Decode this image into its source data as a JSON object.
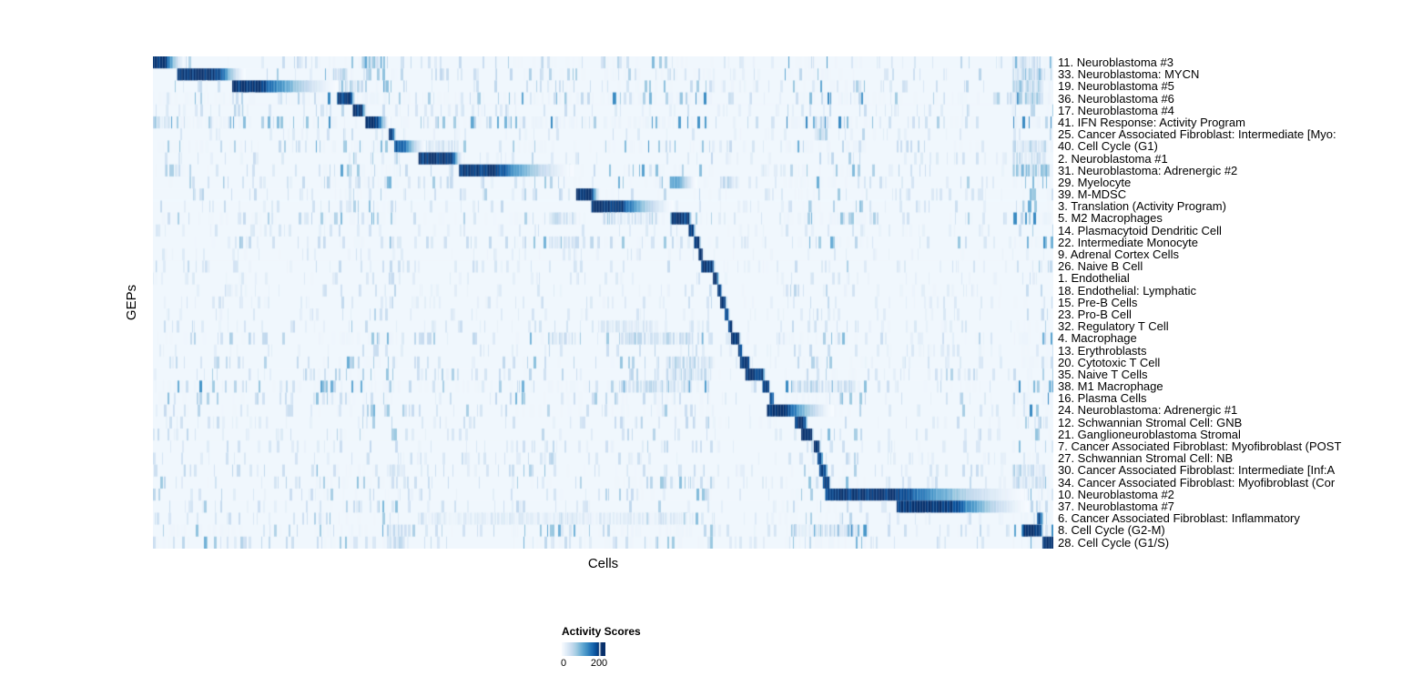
{
  "figure": {
    "y_axis_title": "GEPs",
    "x_axis_title": "Cells"
  },
  "legend": {
    "title": "Activity Scores",
    "min_label": "0",
    "max_label": "200"
  },
  "chart_data": {
    "type": "heatmap",
    "title": "",
    "xlabel": "Cells",
    "ylabel": "GEPs",
    "x_tick_labels": [],
    "grid": false,
    "legend_position": "bottom",
    "colorbar": {
      "title": "Activity Scores",
      "min": 0,
      "max": 200,
      "tick_labels": [
        "0",
        "200"
      ]
    },
    "color_low": "#f7fbff",
    "color_high": "#08306b",
    "description": "Each row is a gene expression program (GEP); cells are ordered along x. 'block' = [start_frac, dark_end_frac, fade_end_frac, peak(0-1 of max=200)] giving the diagonal activity block of that GEP. 'clusters' = [start_frac, end_frac, intensity] secondary activity streaks. 'noise' = background streak level.",
    "rows": [
      {
        "label": "11. Neuroblastoma #3",
        "block": [
          0.0,
          0.012,
          0.035,
          1.0
        ],
        "clusters": [
          [
            0.232,
            0.258,
            0.5
          ],
          [
            0.96,
            0.985,
            0.3
          ]
        ],
        "noise": 0.45
      },
      {
        "label": "33. Neuroblastoma: MYCN",
        "block": [
          0.027,
          0.072,
          0.102,
          1.0
        ],
        "clusters": [
          [
            0.2,
            0.215,
            0.3
          ],
          [
            0.955,
            0.99,
            0.35
          ]
        ],
        "noise": 0.5
      },
      {
        "label": "19. Neuroblastoma #5",
        "block": [
          0.088,
          0.118,
          0.205,
          1.0
        ],
        "clusters": [
          [
            0.207,
            0.232,
            0.35
          ],
          [
            0.955,
            0.99,
            0.35
          ]
        ],
        "noise": 0.45
      },
      {
        "label": "36. Neuroblastoma #6",
        "block": [
          0.205,
          0.219,
          0.225,
          1.0
        ],
        "clusters": [
          [
            0.955,
            0.99,
            0.4
          ]
        ],
        "noise": 0.7
      },
      {
        "label": "17. Neuroblastoma #4",
        "block": [
          0.222,
          0.231,
          0.238,
          1.0
        ],
        "clusters": [
          [
            0.09,
            0.1,
            0.3
          ]
        ],
        "noise": 0.3
      },
      {
        "label": "41. IFN Response: Activity Program",
        "block": [
          0.236,
          0.249,
          0.262,
          1.0
        ],
        "clusters": [
          [
            0.0,
            0.02,
            0.35
          ],
          [
            0.735,
            0.75,
            0.3
          ]
        ],
        "noise": 0.75
      },
      {
        "label": "25. Cancer Associated Fibroblast: Intermediate [Myo:",
        "block": [
          0.262,
          0.266,
          0.27,
          1.0
        ],
        "clusters": [
          [
            0.735,
            0.75,
            0.35
          ]
        ],
        "noise": 0.25
      },
      {
        "label": "40. Cell Cycle (G1)",
        "block": [
          0.268,
          0.278,
          0.302,
          0.85
        ],
        "clusters": [
          [
            0.3,
            0.34,
            0.25
          ],
          [
            0.955,
            0.99,
            0.3
          ]
        ],
        "noise": 0.55
      },
      {
        "label": "2. Neuroblastoma #1",
        "block": [
          0.295,
          0.332,
          0.344,
          1.0
        ],
        "clusters": [
          [
            0.955,
            0.99,
            0.3
          ]
        ],
        "noise": 0.3
      },
      {
        "label": "31. Neuroblastoma: Adrenergic #2",
        "block": [
          0.34,
          0.38,
          0.467,
          1.0
        ],
        "clusters": [
          [
            0.955,
            0.995,
            0.45
          ]
        ],
        "noise": 0.5
      },
      {
        "label": "29. Myelocyte",
        "block": [
          0.574,
          0.585,
          0.603,
          0.55
        ],
        "clusters": [
          [
            0.63,
            0.65,
            0.3
          ]
        ],
        "noise": 0.45
      },
      {
        "label": "39. M-MDSC",
        "block": [
          0.47,
          0.486,
          0.497,
          1.0
        ],
        "clusters": [],
        "noise": 0.4
      },
      {
        "label": "3. Translation (Activity Program)",
        "block": [
          0.487,
          0.518,
          0.578,
          1.0
        ],
        "clusters": [],
        "noise": 0.35
      },
      {
        "label": "5. M2 Macrophages",
        "block": [
          0.576,
          0.594,
          0.599,
          1.0
        ],
        "clusters": [
          [
            0.44,
            0.47,
            0.3
          ],
          [
            0.5,
            0.56,
            0.25
          ]
        ],
        "noise": 0.55
      },
      {
        "label": "14. Plasmacytoid Dendritic Cell",
        "block": [
          0.595,
          0.6,
          0.602,
          1.0
        ],
        "clusters": [],
        "noise": 0.25
      },
      {
        "label": "22. Intermediate Monocyte",
        "block": [
          0.601,
          0.606,
          0.608,
          1.0
        ],
        "clusters": [
          [
            0.44,
            0.47,
            0.25
          ]
        ],
        "noise": 0.45
      },
      {
        "label": "9. Adrenal Cortex Cells",
        "block": [
          0.606,
          0.609,
          0.611,
          0.95
        ],
        "clusters": [],
        "noise": 0.2
      },
      {
        "label": "26. Naive B Cell",
        "block": [
          0.609,
          0.621,
          0.624,
          1.0
        ],
        "clusters": [],
        "noise": 0.3
      },
      {
        "label": "1. Endothelial",
        "block": [
          0.622,
          0.626,
          0.628,
          1.0
        ],
        "clusters": [],
        "noise": 0.2
      },
      {
        "label": "18. Endothelial: Lymphatic",
        "block": [
          0.627,
          0.63,
          0.632,
          0.9
        ],
        "clusters": [],
        "noise": 0.22
      },
      {
        "label": "15. Pre-B Cells",
        "block": [
          0.63,
          0.635,
          0.637,
          1.0
        ],
        "clusters": [],
        "noise": 0.28
      },
      {
        "label": "23. Pro-B Cell",
        "block": [
          0.635,
          0.638,
          0.64,
          0.9
        ],
        "clusters": [],
        "noise": 0.25
      },
      {
        "label": "32. Regulatory T Cell",
        "block": [
          0.639,
          0.642,
          0.644,
          0.95
        ],
        "clusters": [
          [
            0.5,
            0.56,
            0.2
          ]
        ],
        "noise": 0.3
      },
      {
        "label": "4. Macrophage",
        "block": [
          0.642,
          0.65,
          0.652,
          1.0
        ],
        "clusters": [
          [
            0.52,
            0.6,
            0.3
          ],
          [
            0.44,
            0.47,
            0.25
          ]
        ],
        "noise": 0.5
      },
      {
        "label": "13. Erythroblasts",
        "block": [
          0.65,
          0.653,
          0.655,
          0.9
        ],
        "clusters": [],
        "noise": 0.28
      },
      {
        "label": "20. Cytotoxic T Cell",
        "block": [
          0.652,
          0.661,
          0.663,
          1.0
        ],
        "clusters": [
          [
            0.57,
            0.62,
            0.3
          ]
        ],
        "noise": 0.4
      },
      {
        "label": "35. Naive T Cells",
        "block": [
          0.658,
          0.677,
          0.68,
          1.0
        ],
        "clusters": [
          [
            0.57,
            0.62,
            0.3
          ]
        ],
        "noise": 0.4
      },
      {
        "label": "38. M1 Macrophage",
        "block": [
          0.677,
          0.683,
          0.685,
          1.0
        ],
        "clusters": [
          [
            0.52,
            0.6,
            0.3
          ],
          [
            0.71,
            0.78,
            0.3
          ]
        ],
        "noise": 0.65
      },
      {
        "label": "16. Plasma Cells",
        "block": [
          0.685,
          0.688,
          0.69,
          0.9
        ],
        "clusters": [],
        "noise": 0.45
      },
      {
        "label": "24. Neuroblastoma: Adrenergic #1",
        "block": [
          0.682,
          0.702,
          0.755,
          1.0
        ],
        "clusters": [],
        "noise": 0.45
      },
      {
        "label": "12. Schwannian Stromal Cell: GNB",
        "block": [
          0.713,
          0.724,
          0.727,
          1.0
        ],
        "clusters": [],
        "noise": 0.3
      },
      {
        "label": "21. Ganglioneuroblastoma Stromal",
        "block": [
          0.72,
          0.731,
          0.733,
          1.0
        ],
        "clusters": [],
        "noise": 0.35
      },
      {
        "label": "7. Cancer Associated Fibroblast: Myofibroblast (POST",
        "block": [
          0.734,
          0.739,
          0.741,
          0.95
        ],
        "clusters": [],
        "noise": 0.28
      },
      {
        "label": "27. Schwannian Stromal Cell: NB",
        "block": [
          0.738,
          0.742,
          0.744,
          0.95
        ],
        "clusters": [],
        "noise": 0.3
      },
      {
        "label": "30. Cancer Associated Fibroblast: Intermediate [Inf:A",
        "block": [
          0.74,
          0.747,
          0.749,
          0.9
        ],
        "clusters": [
          [
            0.26,
            0.28,
            0.25
          ],
          [
            0.955,
            0.99,
            0.3
          ]
        ],
        "noise": 0.4
      },
      {
        "label": "34. Cancer Associated Fibroblast: Myofibroblast (Cor",
        "block": [
          0.744,
          0.75,
          0.752,
          0.95
        ],
        "clusters": [
          [
            0.955,
            0.99,
            0.3
          ]
        ],
        "noise": 0.45
      },
      {
        "label": "10. Neuroblastoma #2",
        "block": [
          0.747,
          0.826,
          0.971,
          1.0
        ],
        "clusters": [],
        "noise": 0.4
      },
      {
        "label": "37. Neuroblastoma #7",
        "block": [
          0.826,
          0.885,
          0.972,
          1.0
        ],
        "clusters": [],
        "noise": 0.35
      },
      {
        "label": "6. Cancer Associated Fibroblast: Inflammatory",
        "block": [
          0.982,
          0.986,
          0.988,
          0.9
        ],
        "clusters": [
          [
            0.3,
            0.6,
            0.15
          ]
        ],
        "noise": 0.4
      },
      {
        "label": "8. Cell Cycle (G2-M)",
        "block": [
          0.966,
          0.985,
          0.989,
          1.0
        ],
        "clusters": [
          [
            0.26,
            0.28,
            0.3
          ],
          [
            0.71,
            0.78,
            0.25
          ]
        ],
        "noise": 0.55
      },
      {
        "label": "28. Cell Cycle (G1/S)",
        "block": [
          0.988,
          0.999,
          1.0,
          1.0
        ],
        "clusters": [
          [
            0.26,
            0.28,
            0.25
          ]
        ],
        "noise": 0.5
      }
    ],
    "noise_bands": [
      [
        0.0,
        0.1,
        1.2
      ],
      [
        0.18,
        0.27,
        1.6
      ],
      [
        0.4,
        0.48,
        1.3
      ],
      [
        0.5,
        0.62,
        1.4
      ],
      [
        0.62,
        0.7,
        0.55
      ],
      [
        0.7,
        0.79,
        1.6
      ],
      [
        0.79,
        0.88,
        0.8
      ],
      [
        0.88,
        0.92,
        1.1
      ],
      [
        0.92,
        0.955,
        0.6
      ],
      [
        0.955,
        1.0,
        1.9
      ]
    ]
  }
}
